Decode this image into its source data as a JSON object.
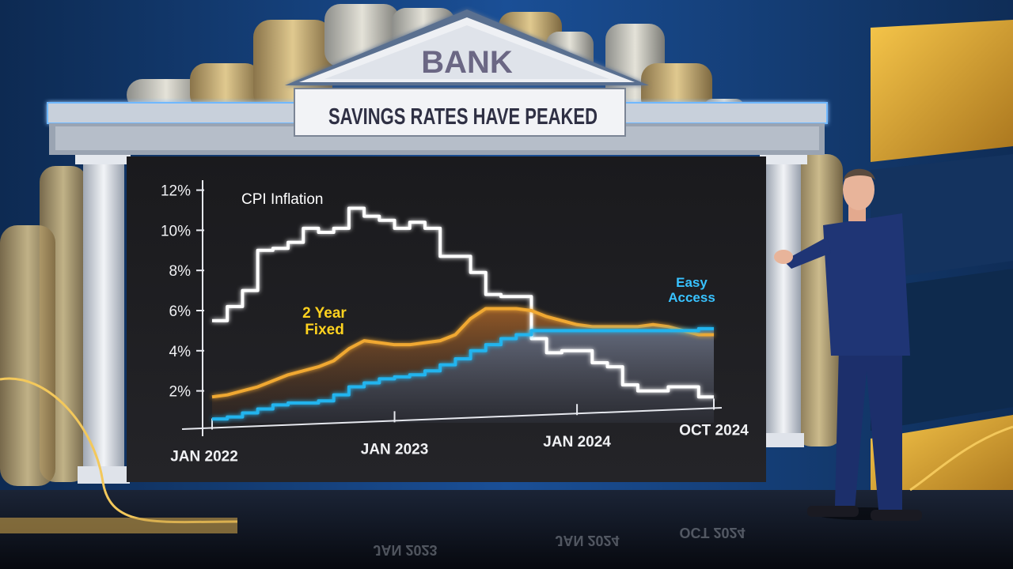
{
  "roof_sign": "BANK",
  "banner_title": "SAVINGS RATES HAVE PEAKED",
  "floor_reflections": [
    "JAN 2023",
    "JAN 2024",
    "OCT 2024"
  ],
  "colors": {
    "cpi": "#ffffff",
    "two_year_fixed": "#f0a830",
    "easy_access": "#22b4ee",
    "label_fixed": "#ffd21f",
    "label_access": "#38c2ff",
    "panel": "#1c1c1f"
  },
  "chart_data": {
    "type": "line",
    "title": "SAVINGS RATES HAVE PEAKED",
    "x_start": "2022-01",
    "x_end": "2024-10",
    "xticks": [
      {
        "date": "2022-01",
        "label": "JAN 2022"
      },
      {
        "date": "2023-01",
        "label": "JAN 2023"
      },
      {
        "date": "2024-01",
        "label": "JAN 2024"
      },
      {
        "date": "2024-10",
        "label": "OCT 2024"
      }
    ],
    "yticks": [
      2,
      4,
      6,
      8,
      10,
      12
    ],
    "ytick_suffix": "%",
    "ylim": [
      0,
      12
    ],
    "grid": false,
    "series": [
      {
        "name": "CPI Inflation",
        "style": "step",
        "color": "#ffffff",
        "points": [
          [
            "2022-01",
            5.5
          ],
          [
            "2022-02",
            6.2
          ],
          [
            "2022-03",
            7.0
          ],
          [
            "2022-04",
            9.0
          ],
          [
            "2022-05",
            9.1
          ],
          [
            "2022-06",
            9.4
          ],
          [
            "2022-07",
            10.1
          ],
          [
            "2022-08",
            9.9
          ],
          [
            "2022-09",
            10.1
          ],
          [
            "2022-10",
            11.1
          ],
          [
            "2022-11",
            10.7
          ],
          [
            "2022-12",
            10.5
          ],
          [
            "2023-01",
            10.1
          ],
          [
            "2023-02",
            10.4
          ],
          [
            "2023-03",
            10.1
          ],
          [
            "2023-04",
            8.7
          ],
          [
            "2023-05",
            8.7
          ],
          [
            "2023-06",
            7.9
          ],
          [
            "2023-07",
            6.8
          ],
          [
            "2023-08",
            6.7
          ],
          [
            "2023-09",
            6.7
          ],
          [
            "2023-10",
            4.6
          ],
          [
            "2023-11",
            3.9
          ],
          [
            "2023-12",
            4.0
          ],
          [
            "2024-01",
            4.0
          ],
          [
            "2024-02",
            3.4
          ],
          [
            "2024-03",
            3.2
          ],
          [
            "2024-04",
            2.3
          ],
          [
            "2024-05",
            2.0
          ],
          [
            "2024-06",
            2.0
          ],
          [
            "2024-07",
            2.2
          ],
          [
            "2024-08",
            2.2
          ],
          [
            "2024-09",
            1.7
          ],
          [
            "2024-10",
            1.7
          ]
        ]
      },
      {
        "name": "2 Year Fixed",
        "label_lines": [
          "2 Year",
          "Fixed"
        ],
        "style": "line",
        "color": "#f0a830",
        "points": [
          [
            "2022-01",
            1.7
          ],
          [
            "2022-02",
            1.8
          ],
          [
            "2022-03",
            2.0
          ],
          [
            "2022-04",
            2.2
          ],
          [
            "2022-05",
            2.5
          ],
          [
            "2022-06",
            2.8
          ],
          [
            "2022-07",
            3.0
          ],
          [
            "2022-08",
            3.2
          ],
          [
            "2022-09",
            3.5
          ],
          [
            "2022-10",
            4.1
          ],
          [
            "2022-11",
            4.5
          ],
          [
            "2022-12",
            4.4
          ],
          [
            "2023-01",
            4.3
          ],
          [
            "2023-02",
            4.3
          ],
          [
            "2023-03",
            4.4
          ],
          [
            "2023-04",
            4.5
          ],
          [
            "2023-05",
            4.8
          ],
          [
            "2023-06",
            5.6
          ],
          [
            "2023-07",
            6.1
          ],
          [
            "2023-08",
            6.1
          ],
          [
            "2023-09",
            6.1
          ],
          [
            "2023-10",
            6.0
          ],
          [
            "2023-11",
            5.7
          ],
          [
            "2023-12",
            5.5
          ],
          [
            "2024-01",
            5.3
          ],
          [
            "2024-02",
            5.2
          ],
          [
            "2024-03",
            5.2
          ],
          [
            "2024-04",
            5.2
          ],
          [
            "2024-05",
            5.2
          ],
          [
            "2024-06",
            5.3
          ],
          [
            "2024-07",
            5.2
          ],
          [
            "2024-08",
            5.0
          ],
          [
            "2024-09",
            4.8
          ],
          [
            "2024-10",
            4.8
          ]
        ]
      },
      {
        "name": "Easy Access",
        "label_lines": [
          "Easy",
          "Access"
        ],
        "style": "step",
        "color": "#22b4ee",
        "points": [
          [
            "2022-01",
            0.6
          ],
          [
            "2022-02",
            0.7
          ],
          [
            "2022-03",
            0.9
          ],
          [
            "2022-04",
            1.1
          ],
          [
            "2022-05",
            1.3
          ],
          [
            "2022-06",
            1.4
          ],
          [
            "2022-07",
            1.4
          ],
          [
            "2022-08",
            1.5
          ],
          [
            "2022-09",
            1.8
          ],
          [
            "2022-10",
            2.2
          ],
          [
            "2022-11",
            2.4
          ],
          [
            "2022-12",
            2.6
          ],
          [
            "2023-01",
            2.7
          ],
          [
            "2023-02",
            2.8
          ],
          [
            "2023-03",
            3.0
          ],
          [
            "2023-04",
            3.3
          ],
          [
            "2023-05",
            3.6
          ],
          [
            "2023-06",
            4.0
          ],
          [
            "2023-07",
            4.3
          ],
          [
            "2023-08",
            4.6
          ],
          [
            "2023-09",
            4.8
          ],
          [
            "2023-10",
            5.0
          ],
          [
            "2023-11",
            5.0
          ],
          [
            "2023-12",
            5.0
          ],
          [
            "2024-01",
            5.0
          ],
          [
            "2024-02",
            5.0
          ],
          [
            "2024-03",
            5.0
          ],
          [
            "2024-04",
            5.0
          ],
          [
            "2024-05",
            5.0
          ],
          [
            "2024-06",
            5.0
          ],
          [
            "2024-07",
            5.0
          ],
          [
            "2024-08",
            5.0
          ],
          [
            "2024-09",
            5.1
          ],
          [
            "2024-10",
            5.1
          ]
        ]
      }
    ]
  }
}
